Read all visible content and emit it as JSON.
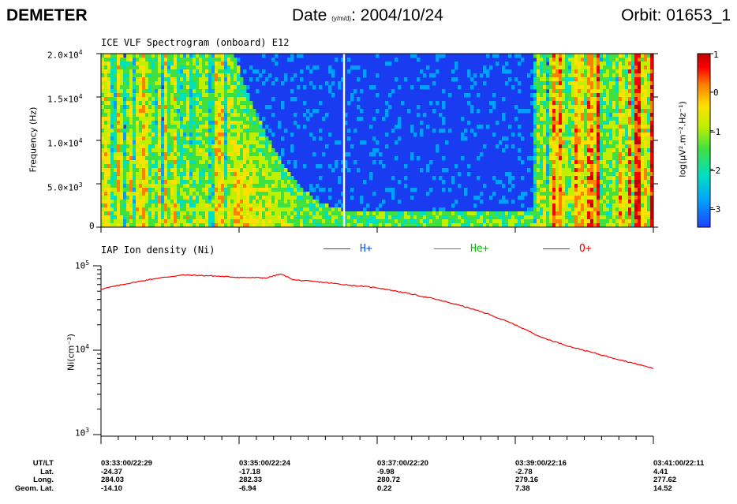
{
  "header": {
    "mission": "DEMETER",
    "date_label": "Date",
    "date_sub": "(y/m/d)",
    "date_value": ": 2004/10/24",
    "orbit": "Orbit: 01653_1"
  },
  "chart_data": [
    {
      "type": "heatmap",
      "title": "ICE VLF Spectrogram (onboard) E12",
      "ylabel": "Frequency (Hz)",
      "ylim": [
        0,
        20000
      ],
      "yticks": [
        "2.0×10",
        "1.5×10",
        "1.0×10",
        "5.0×10",
        "0"
      ],
      "ytick_exponents": [
        "4",
        "4",
        "4",
        "3",
        ""
      ],
      "colorbar": {
        "label": "log(µV².m⁻².Hz⁻¹)",
        "range": [
          -3.5,
          1
        ],
        "ticks": [
          "1",
          "0",
          "−1",
          "−2",
          "−3"
        ],
        "colors": [
          "#2040ff",
          "#00a0ff",
          "#00e0c0",
          "#40e040",
          "#c0f000",
          "#ffe000",
          "#ff8000",
          "#ff0000",
          "#c00000"
        ]
      },
      "features": {
        "quiet_region_time_fraction": [
          0.24,
          0.785
        ],
        "cutoff_frequency_hz": 2000,
        "gap_time_fraction": 0.44
      }
    },
    {
      "type": "line",
      "title": "IAP Ion density (Ni)",
      "ylabel": "Ni(cm⁻³)",
      "yscale": "log",
      "ylim": [
        1000,
        100000
      ],
      "yticks": [
        "10",
        "10",
        "10"
      ],
      "ytick_exponents": [
        "5",
        "4",
        "3"
      ],
      "legend": [
        "H+",
        "He+",
        "O+"
      ],
      "legend_colors": [
        "#0050ff",
        "#00c000",
        "#ff0000"
      ],
      "x_minutes": [
        0,
        0.4,
        0.8,
        1.2,
        1.6,
        2.0,
        2.4,
        2.6,
        2.8,
        3.2,
        3.6,
        4.0,
        4.4,
        4.8,
        5.2,
        5.6,
        6.0,
        6.4,
        6.8,
        7.2,
        7.6,
        8.0
      ],
      "series": [
        {
          "name": "O+",
          "color": "#ff0000",
          "values": [
            53000,
            62000,
            71000,
            78000,
            76000,
            73000,
            72000,
            80000,
            68000,
            64000,
            59000,
            55000,
            48000,
            41000,
            34000,
            27000,
            20000,
            14000,
            11000,
            9000,
            7400,
            6100
          ]
        }
      ]
    }
  ],
  "footer": {
    "row_labels": [
      "UT/LT",
      "Lat.",
      "Long.",
      "Geom. Lat."
    ],
    "columns": [
      {
        "time": "03:33:00/22:29",
        "lat": "-24.37",
        "long": "284.03",
        "geom": "-14.10"
      },
      {
        "time": "03:35:00/22:24",
        "lat": "-17.18",
        "long": "282.33",
        "geom": "-6.94"
      },
      {
        "time": "03:37:00/22:20",
        "lat": "-9.98",
        "long": "280.72",
        "geom": "0.22"
      },
      {
        "time": "03:39:00/22:16",
        "lat": "-2.78",
        "long": "279.16",
        "geom": "7.38"
      },
      {
        "time": "03:41:00/22:11",
        "lat": "4.41",
        "long": "277.62",
        "geom": "14.52"
      }
    ]
  }
}
